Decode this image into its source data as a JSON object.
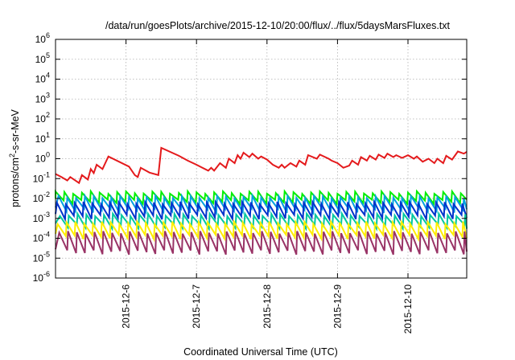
{
  "chart_data": {
    "type": "line",
    "title": "/data/run/goesPlots/archive/2015-12-10/20:00/flux/../flux/5daysMarsFluxes.txt",
    "xlabel": "Coordinated Universal Time (UTC)",
    "ylabel": {
      "pre": "protons/cm",
      "sup": "2",
      "post": "-s-sr-MeV"
    },
    "x_ticks": [
      "2015-12-6",
      "2015-12-7",
      "2015-12-8",
      "2015-12-9",
      "2015-12-10"
    ],
    "x_range": [
      "2015-12-05T00:00",
      "2015-12-10T20:00"
    ],
    "y_scale": "log",
    "ylim": [
      1e-06,
      1000000.0
    ],
    "y_ticks": [
      {
        "value": 1e-06,
        "base": "10",
        "exp": "-6"
      },
      {
        "value": 1e-05,
        "base": "10",
        "exp": "-5"
      },
      {
        "value": 0.0001,
        "base": "10",
        "exp": "-4"
      },
      {
        "value": 0.001,
        "base": "10",
        "exp": "-3"
      },
      {
        "value": 0.01,
        "base": "10",
        "exp": "-2"
      },
      {
        "value": 0.1,
        "base": "10",
        "exp": "-1"
      },
      {
        "value": 1.0,
        "base": "10",
        "exp": "0"
      },
      {
        "value": 10.0,
        "base": "10",
        "exp": "1"
      },
      {
        "value": 100.0,
        "base": "10",
        "exp": "2"
      },
      {
        "value": 1000.0,
        "base": "10",
        "exp": "3"
      },
      {
        "value": 10000.0,
        "base": "10",
        "exp": "4"
      },
      {
        "value": 100000.0,
        "base": "10",
        "exp": "5"
      },
      {
        "value": 1000000.0,
        "base": "10",
        "exp": "6"
      }
    ],
    "grid": true,
    "series": [
      {
        "color": "#e41a1c",
        "points": [
          [
            "2015-12-05T00:00",
            0.17
          ],
          [
            "2015-12-05T02:00",
            0.12
          ],
          [
            "2015-12-05T04:00",
            0.08
          ],
          [
            "2015-12-05T05:00",
            0.12
          ],
          [
            "2015-12-05T08:00",
            0.06
          ],
          [
            "2015-12-05T09:00",
            0.15
          ],
          [
            "2015-12-05T11:00",
            0.09
          ],
          [
            "2015-12-05T12:00",
            0.3
          ],
          [
            "2015-12-05T13:00",
            0.19
          ],
          [
            "2015-12-05T14:00",
            0.5
          ],
          [
            "2015-12-05T16:00",
            0.3
          ],
          [
            "2015-12-05T18:00",
            1.3
          ],
          [
            "2015-12-06T01:00",
            0.4
          ],
          [
            "2015-12-06T03:00",
            0.15
          ],
          [
            "2015-12-06T04:00",
            0.12
          ],
          [
            "2015-12-06T05:00",
            0.35
          ],
          [
            "2015-12-06T08:00",
            0.2
          ],
          [
            "2015-12-06T11:00",
            0.15
          ],
          [
            "2015-12-06T12:00",
            3.5
          ],
          [
            "2015-12-06T18:00",
            1.4
          ],
          [
            "2015-12-06T21:00",
            0.8
          ],
          [
            "2015-12-07T00:00",
            0.5
          ],
          [
            "2015-12-07T02:00",
            0.35
          ],
          [
            "2015-12-07T04:00",
            0.25
          ],
          [
            "2015-12-07T05:00",
            0.35
          ],
          [
            "2015-12-07T06:00",
            0.25
          ],
          [
            "2015-12-07T08:00",
            0.6
          ],
          [
            "2015-12-07T10:00",
            0.35
          ],
          [
            "2015-12-07T11:00",
            1.0
          ],
          [
            "2015-12-07T13:00",
            0.6
          ],
          [
            "2015-12-07T14:00",
            1.5
          ],
          [
            "2015-12-07T15:00",
            1.0
          ],
          [
            "2015-12-07T16:00",
            2.0
          ],
          [
            "2015-12-07T18:00",
            1.2
          ],
          [
            "2015-12-07T19:00",
            1.8
          ],
          [
            "2015-12-07T21:00",
            1.0
          ],
          [
            "2015-12-07T22:00",
            1.3
          ],
          [
            "2015-12-08T00:00",
            0.9
          ],
          [
            "2015-12-08T02:00",
            0.5
          ],
          [
            "2015-12-08T04:00",
            0.35
          ],
          [
            "2015-12-08T05:00",
            0.5
          ],
          [
            "2015-12-08T06:00",
            0.35
          ],
          [
            "2015-12-08T08:00",
            0.6
          ],
          [
            "2015-12-08T10:00",
            0.4
          ],
          [
            "2015-12-08T11:00",
            0.8
          ],
          [
            "2015-12-08T13:00",
            0.5
          ],
          [
            "2015-12-08T14:00",
            1.5
          ],
          [
            "2015-12-08T17:00",
            1.0
          ],
          [
            "2015-12-08T18:00",
            1.6
          ],
          [
            "2015-12-08T21:00",
            1.0
          ],
          [
            "2015-12-08T22:00",
            0.8
          ],
          [
            "2015-12-09T00:00",
            0.6
          ],
          [
            "2015-12-09T02:00",
            0.35
          ],
          [
            "2015-12-09T04:00",
            0.45
          ],
          [
            "2015-12-09T05:00",
            0.8
          ],
          [
            "2015-12-09T07:00",
            0.5
          ],
          [
            "2015-12-09T08:00",
            1.2
          ],
          [
            "2015-12-09T10:00",
            0.8
          ],
          [
            "2015-12-09T11:00",
            1.4
          ],
          [
            "2015-12-09T13:00",
            0.9
          ],
          [
            "2015-12-09T14:00",
            1.6
          ],
          [
            "2015-12-09T16:00",
            1.1
          ],
          [
            "2015-12-09T17:00",
            1.8
          ],
          [
            "2015-12-09T19:00",
            1.2
          ],
          [
            "2015-12-09T20:00",
            1.5
          ],
          [
            "2015-12-09T22:00",
            1.1
          ],
          [
            "2015-12-10T00:00",
            1.5
          ],
          [
            "2015-12-10T02:00",
            1.0
          ],
          [
            "2015-12-10T03:00",
            1.3
          ],
          [
            "2015-12-10T05:00",
            0.7
          ],
          [
            "2015-12-10T07:00",
            1.0
          ],
          [
            "2015-12-10T09:00",
            0.6
          ],
          [
            "2015-12-10T10:00",
            1.0
          ],
          [
            "2015-12-10T12:00",
            0.6
          ],
          [
            "2015-12-10T13:00",
            1.4
          ],
          [
            "2015-12-10T15:00",
            0.9
          ],
          [
            "2015-12-10T17:00",
            2.3
          ],
          [
            "2015-12-10T19:00",
            1.8
          ],
          [
            "2015-12-10T20:00",
            2.2
          ]
        ]
      },
      {
        "color": "#00ee00",
        "sawtooth": {
          "start": "2015-12-05T00:00",
          "period_hours": 3,
          "peak": 0.02,
          "trough": 0.007
        }
      },
      {
        "color": "#00a0e0",
        "sawtooth": {
          "start": "2015-12-05T01:00",
          "period_hours": 3,
          "peak": 0.012,
          "trough": 0.0025
        }
      },
      {
        "color": "#0033cc",
        "sawtooth": {
          "start": "2015-12-05T00:30",
          "period_hours": 3,
          "peak": 0.006,
          "trough": 0.0012
        }
      },
      {
        "color": "#00c8a0",
        "sawtooth": {
          "start": "2015-12-05T01:30",
          "period_hours": 3,
          "peak": 0.0015,
          "trough": 0.0004
        }
      },
      {
        "color": "#ffee00",
        "sawtooth": {
          "start": "2015-12-05T00:45",
          "period_hours": 3,
          "peak": 0.0006,
          "trough": 0.00012
        }
      },
      {
        "color": "#993366",
        "sawtooth": {
          "start": "2015-12-05T01:15",
          "period_hours": 3,
          "peak": 0.0002,
          "trough": 2e-05
        }
      }
    ]
  }
}
